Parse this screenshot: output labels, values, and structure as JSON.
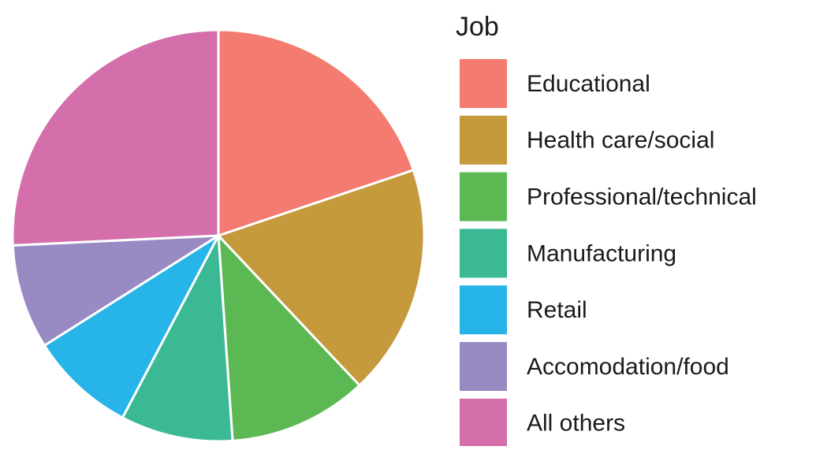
{
  "chart_data": {
    "type": "pie",
    "legend_title": "Job",
    "categories": [
      "Educational",
      "Health care/social",
      "Professional/technical",
      "Manufacturing",
      "Retail",
      "Accomodation/food",
      "All others"
    ],
    "values": [
      19.8,
      18.1,
      10.9,
      8.8,
      8.3,
      8.2,
      25.7
    ],
    "colors": [
      "#F37B70",
      "#C49A3C",
      "#5BB853",
      "#3BB995",
      "#27B4E8",
      "#9A8AC4",
      "#D46FAC"
    ],
    "legend": "right"
  }
}
